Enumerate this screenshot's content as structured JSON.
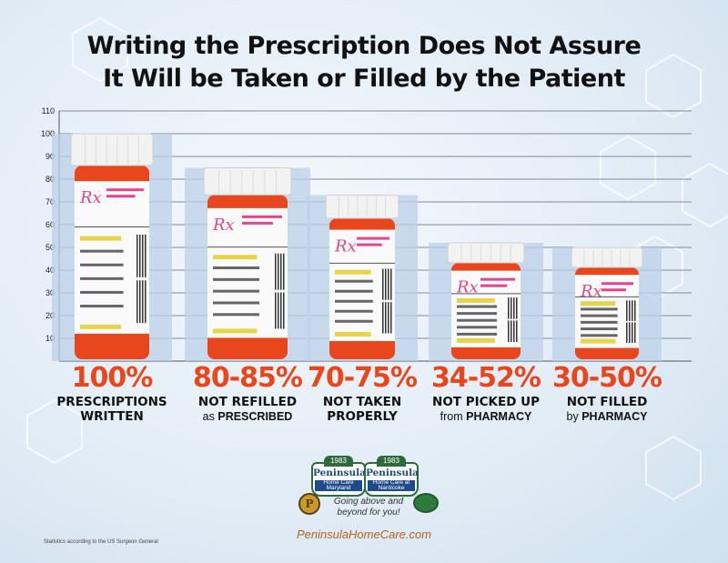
{
  "title_line1": "Writing the Prescription Does Not Assure",
  "title_line2": "It Will be Taken or Filled by the Patient",
  "chart_data": {
    "type": "bar",
    "title": "Writing the Prescription Does Not Assure It Will be Taken or Filled by the Patient",
    "ylim": [
      0,
      110
    ],
    "yticks": [
      10,
      20,
      30,
      40,
      50,
      60,
      70,
      80,
      90,
      100,
      110
    ],
    "grid": true,
    "categories": [
      "PRESCRIPTIONS WRITTEN",
      "NOT REFILLED as PRESCRIBED",
      "NOT TAKEN PROPERLY",
      "NOT PICKED UP from PHARMACY",
      "NOT FILLED by PHARMACY"
    ],
    "values": [
      100,
      85,
      73,
      52,
      50
    ],
    "bar_labels": [
      "100%",
      "80-85%",
      "70-75%",
      "34-52%",
      "30-50%"
    ]
  },
  "categories_text": [
    {
      "pct": "100%",
      "line1": "PRESCRIPTIONS",
      "line2a": "WRITTEN",
      "line2b": ""
    },
    {
      "pct": "80-85%",
      "line1": "NOT REFILLED",
      "line2a": "as ",
      "line2b": "PRESCRIBED"
    },
    {
      "pct": "70-75%",
      "line1": "NOT TAKEN",
      "line2a": "PROPERLY",
      "line2b": ""
    },
    {
      "pct": "34-52%",
      "line1": "NOT PICKED UP",
      "line2a": "from ",
      "line2b": "PHARMACY"
    },
    {
      "pct": "30-50%",
      "line1": "NOT FILLED",
      "line2a": "by ",
      "line2b": "PHARMACY"
    }
  ],
  "label_symbol": "Rx",
  "logos": {
    "left_year": "1983",
    "left_name": "Peninsula",
    "left_sub": "Home Care Maryland",
    "right_year": "1983",
    "right_name": "Peninsula",
    "right_sub": "Home Care at Nanticoke",
    "seal_letter": "P"
  },
  "tagline": "Going above and beyond for you!",
  "website": "PeninsulaHomeCare.com",
  "footnote": "Statistics according to the US Surgeon General",
  "colors": {
    "bottle": "#e8461d",
    "cap": "#f2f2f2",
    "shadow_bar": "#bcd0e8",
    "accent_pink": "#e3468a",
    "label_yellow": "#e8d44a"
  }
}
